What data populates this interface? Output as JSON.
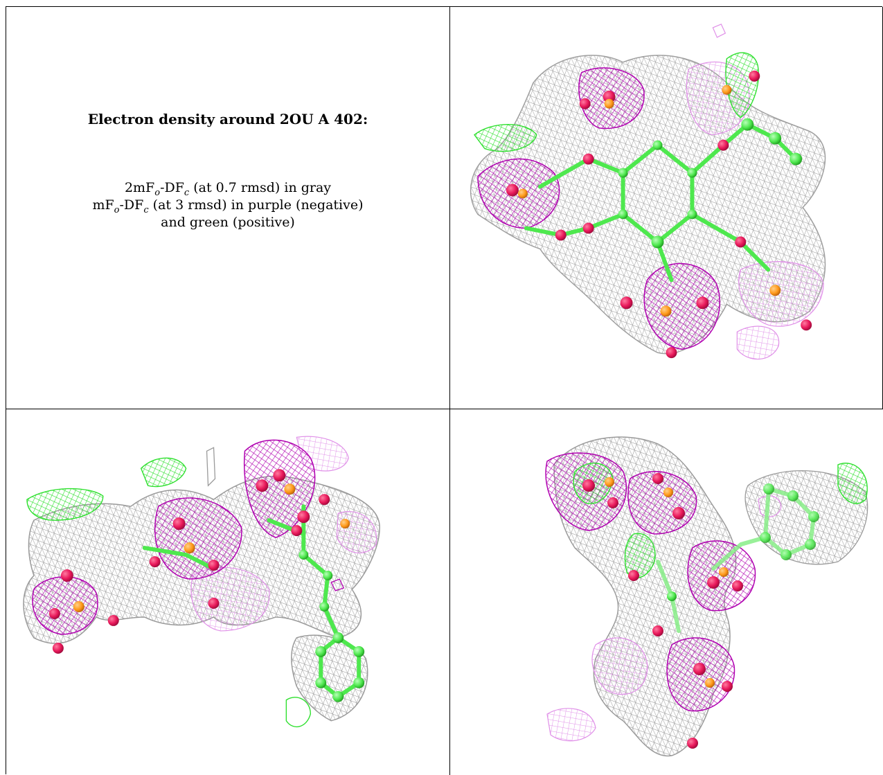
{
  "caption": {
    "title": "Electron density around 2OU A 402:",
    "line1": {
      "prefix": "2mF",
      "sub_o": "o",
      "mid": "-DF",
      "sub_c": "c",
      "suffix": " (at 0.7 rmsd) in gray"
    },
    "line2": {
      "prefix": "mF",
      "sub_o": "o",
      "mid": "-DF",
      "sub_c": "c",
      "suffix": " (at 3 rmsd) in purple (negative)"
    },
    "line3": "and green (positive)"
  },
  "colors": {
    "gray_mesh": "#9a9a9a",
    "purple_mesh": "#b000b0",
    "light_purple_mesh": "#e08ce8",
    "green_mesh": "#33ee33",
    "carbon": "#55ee55",
    "oxygen": "#e8185a",
    "phosphorus": "#ff9a1a"
  },
  "views": [
    {
      "name": "view-top-right"
    },
    {
      "name": "view-bottom-left"
    },
    {
      "name": "view-bottom-right"
    }
  ]
}
